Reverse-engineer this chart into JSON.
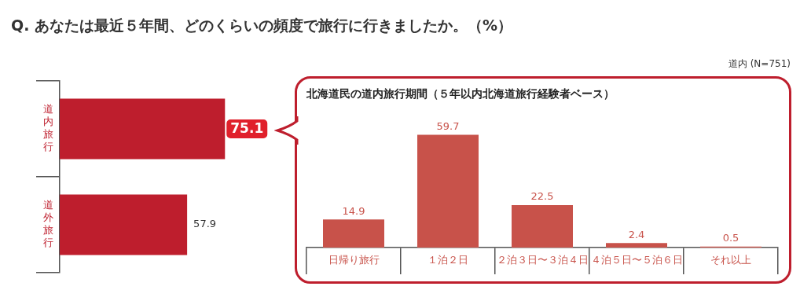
{
  "chart_data": [
    {
      "type": "bar",
      "orientation": "horizontal",
      "title": "Q. あなたは最近５年間、どのくらいの頻度で旅行に行きましたか。（%）",
      "categories": [
        "道内旅行",
        "道外旅行"
      ],
      "values": [
        75.1,
        57.9
      ],
      "color": "#be1e2d",
      "data_labels": true,
      "annotations": [
        "道内 (N=751)"
      ]
    },
    {
      "type": "bar",
      "title": "北海道民の道内旅行期間（５年以内北海道旅行経験者ベース）",
      "categories": [
        "日帰り旅行",
        "１泊２日",
        "２泊３日〜３泊４日",
        "４泊５日〜５泊６日",
        "それ以上"
      ],
      "values": [
        14.9,
        59.7,
        22.5,
        2.4,
        0.5
      ],
      "color": "#c8524a",
      "data_labels": true
    }
  ]
}
